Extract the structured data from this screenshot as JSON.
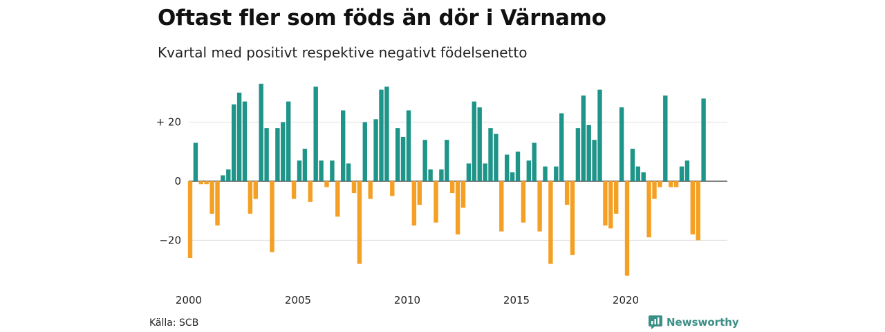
{
  "header": {
    "title": "Oftast fler som föds än dör i Värnamo",
    "subtitle": "Kvartal med positivt respektive negativt födelsenetto"
  },
  "footer": {
    "source": "Källa: SCB",
    "brand": "Newsworthy"
  },
  "colors": {
    "positive": "#1f9488",
    "negative": "#f4a024",
    "grid": "#dddddd",
    "brand": "#3a8f86"
  },
  "chart_data": {
    "type": "bar",
    "title": "Oftast fler som föds än dör i Värnamo",
    "subtitle": "Kvartal med positivt respektive negativt födelsenetto",
    "x_start": 2000,
    "x_step": 0.25,
    "x_ticks": [
      2000,
      2005,
      2010,
      2015,
      2020
    ],
    "y_ticks": [
      {
        "value": 20,
        "label": "+ 20"
      },
      {
        "value": 0,
        "label": "0"
      },
      {
        "value": -20,
        "label": "−20"
      }
    ],
    "ylim": [
      -32,
      33
    ],
    "grid": true,
    "values": [
      -26,
      13,
      -1,
      -1,
      -11,
      -15,
      2,
      4,
      26,
      30,
      27,
      -11,
      -6,
      33,
      18,
      -24,
      18,
      20,
      27,
      -6,
      7,
      11,
      -7,
      32,
      7,
      -2,
      7,
      -12,
      24,
      6,
      -4,
      -28,
      20,
      -6,
      21,
      31,
      32,
      -5,
      18,
      15,
      24,
      -15,
      -8,
      14,
      4,
      -14,
      4,
      14,
      -4,
      -18,
      -9,
      6,
      27,
      25,
      6,
      18,
      16,
      -17,
      9,
      3,
      10,
      -14,
      7,
      13,
      -17,
      5,
      -28,
      5,
      23,
      -8,
      -25,
      18,
      29,
      19,
      14,
      31,
      -15,
      -16,
      -11,
      25,
      -32,
      11,
      5,
      3,
      -19,
      -6,
      -2,
      29,
      -2,
      -2,
      5,
      7,
      -18,
      -20,
      28
    ]
  }
}
